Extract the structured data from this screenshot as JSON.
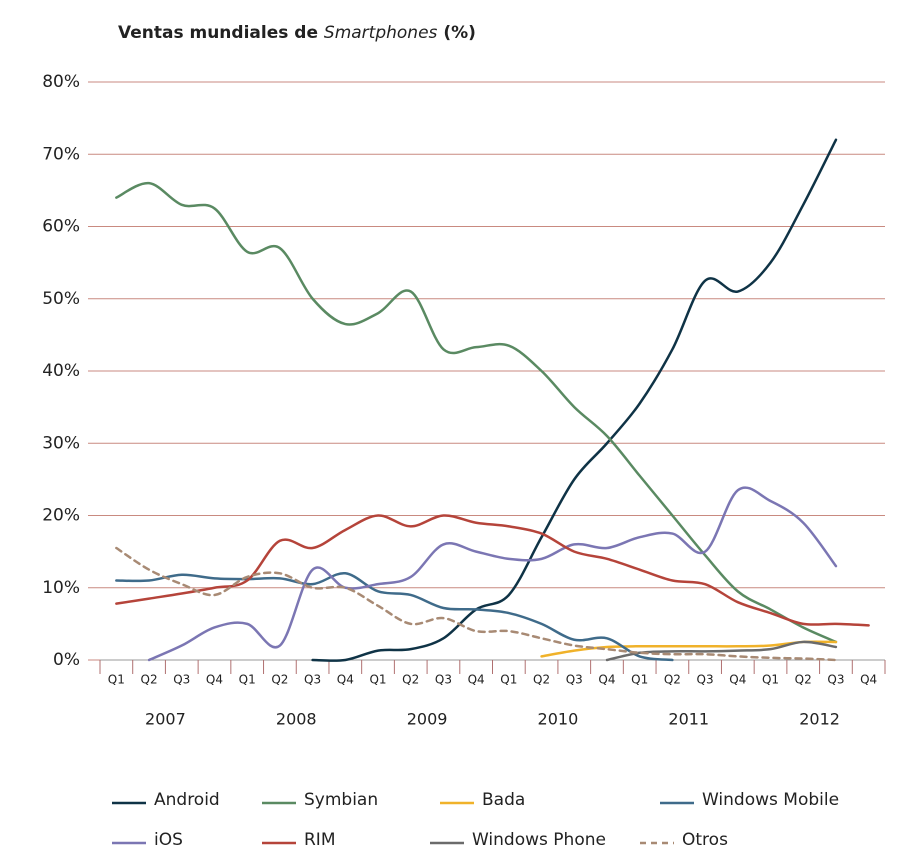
{
  "chart_data": {
    "type": "line",
    "title": {
      "text": "Ventas mundiales de",
      "emphasis": "Smartphones",
      "suffix": "(%)"
    },
    "categories": [
      "Q1",
      "Q2",
      "Q3",
      "Q4",
      "Q1",
      "Q2",
      "Q3",
      "Q4",
      "Q1",
      "Q2",
      "Q3",
      "Q4",
      "Q1",
      "Q2",
      "Q3",
      "Q4",
      "Q1",
      "Q2",
      "Q3",
      "Q4",
      "Q1",
      "Q2",
      "Q3",
      "Q4"
    ],
    "years": [
      "2007",
      "2008",
      "2009",
      "2010",
      "2011",
      "2012"
    ],
    "ylim": [
      0,
      80
    ],
    "yticks": [
      {
        "value": 0,
        "label": "0%"
      },
      {
        "value": 10,
        "label": "10%"
      },
      {
        "value": 20,
        "label": "20%"
      },
      {
        "value": 30,
        "label": "30%"
      },
      {
        "value": 40,
        "label": "40%"
      },
      {
        "value": 50,
        "label": "50%"
      },
      {
        "value": 60,
        "label": "60%"
      },
      {
        "value": 70,
        "label": "70%"
      },
      {
        "value": 80,
        "label": "80%"
      }
    ],
    "grid": true,
    "series": [
      {
        "name": "Android",
        "color": "#0f3346",
        "values": [
          null,
          null,
          null,
          null,
          null,
          null,
          0,
          0,
          1.3,
          1.5,
          3,
          7,
          9,
          17,
          25,
          30,
          35.5,
          43,
          52.5,
          51,
          55,
          63,
          72,
          null
        ]
      },
      {
        "name": "Symbian",
        "color": "#5a8a62",
        "values": [
          64,
          66,
          63,
          62.5,
          56.5,
          57,
          50,
          46.5,
          48,
          51,
          43,
          43.3,
          43.5,
          40,
          35,
          31,
          25.5,
          20,
          14.5,
          9.5,
          7,
          4.5,
          2.5,
          null
        ]
      },
      {
        "name": "Bada",
        "color": "#f0b22a",
        "values": [
          null,
          null,
          null,
          null,
          null,
          null,
          null,
          null,
          null,
          null,
          null,
          null,
          null,
          0.5,
          1.3,
          1.8,
          1.9,
          1.9,
          1.9,
          1.9,
          2,
          2.5,
          2.5,
          null
        ]
      },
      {
        "name": "Windows Mobile",
        "color": "#3f6b8a",
        "values": [
          11,
          11,
          11.8,
          11.3,
          11.2,
          11.3,
          10.5,
          12,
          9.5,
          9,
          7.2,
          7,
          6.5,
          5,
          2.8,
          3,
          0.5,
          0,
          null,
          null,
          null,
          null,
          null,
          null
        ]
      },
      {
        "name": "iOS",
        "color": "#7b76b3",
        "values": [
          null,
          0,
          2,
          4.5,
          5,
          2,
          12.5,
          10,
          10.5,
          11.5,
          16,
          15,
          14,
          14,
          16,
          15.5,
          17,
          17.5,
          15,
          23.5,
          22,
          19,
          13,
          null
        ]
      },
      {
        "name": "RIM",
        "color": "#b5443a",
        "values": [
          7.8,
          8.5,
          9.2,
          10,
          11,
          16.5,
          15.5,
          18,
          20,
          18.5,
          20,
          19,
          18.5,
          17.5,
          15,
          14,
          12.5,
          11,
          10.5,
          8,
          6.5,
          5,
          5,
          4.8
        ]
      },
      {
        "name": "Windows Phone",
        "color": "#6b6b6b",
        "values": [
          null,
          null,
          null,
          null,
          null,
          null,
          null,
          null,
          null,
          null,
          null,
          null,
          null,
          null,
          null,
          0,
          1,
          1.2,
          1.2,
          1.3,
          1.5,
          2.5,
          1.8,
          null
        ]
      },
      {
        "name": "Otros",
        "color": "#a88a74",
        "dash": true,
        "values": [
          15.5,
          12.5,
          10.5,
          9,
          11.5,
          12,
          10,
          10,
          7.5,
          5,
          5.8,
          4,
          4,
          3,
          2,
          1.5,
          1,
          0.8,
          0.8,
          0.5,
          0.3,
          0.2,
          0,
          null
        ]
      }
    ]
  }
}
